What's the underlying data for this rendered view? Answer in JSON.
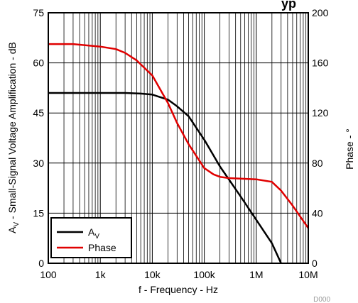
{
  "title_fragment": "yp",
  "figure_id": "D000",
  "chart_data": {
    "type": "line",
    "x_scale": "log",
    "xlim": [
      100,
      10000000
    ],
    "xlabel": "f - Frequency - Hz",
    "x_ticks": [
      {
        "value": 100,
        "label": "100"
      },
      {
        "value": 1000,
        "label": "1k"
      },
      {
        "value": 10000,
        "label": "10k"
      },
      {
        "value": 100000,
        "label": "100k"
      },
      {
        "value": 1000000,
        "label": "1M"
      },
      {
        "value": 10000000,
        "label": "10M"
      }
    ],
    "y_left": {
      "label_main": "A",
      "label_sub": "V",
      "label_rest": " - Small-Signal Voltage Amplification - dB",
      "lim": [
        0,
        75
      ],
      "ticks": [
        0,
        15,
        30,
        45,
        60,
        75
      ]
    },
    "y_right": {
      "label": "Phase - °",
      "lim": [
        0,
        200
      ],
      "ticks": [
        0,
        40,
        80,
        120,
        160,
        200
      ]
    },
    "grid": true,
    "legend_position": "bottom-left",
    "series": [
      {
        "name_main": "A",
        "name_sub": "V",
        "axis": "left",
        "color": "#000000",
        "x": [
          100,
          1000,
          3000,
          6000,
          10000,
          20000,
          30000,
          50000,
          100000,
          200000,
          500000,
          1000000,
          2000000,
          3000000
        ],
        "y": [
          51,
          51,
          51,
          50.8,
          50.5,
          49,
          47,
          44,
          37,
          29,
          20,
          13,
          6,
          0
        ]
      },
      {
        "name": "Phase",
        "axis": "right",
        "color": "#e00000",
        "x": [
          100,
          300,
          1000,
          2000,
          3000,
          5000,
          10000,
          20000,
          30000,
          50000,
          100000,
          150000,
          200000,
          300000,
          1000000,
          2000000,
          3000000,
          5000000,
          10000000
        ],
        "y": [
          175,
          175,
          173,
          171,
          168,
          162,
          150,
          128,
          112,
          95,
          76,
          71,
          69,
          68,
          67,
          65,
          58,
          46,
          28
        ]
      }
    ]
  }
}
